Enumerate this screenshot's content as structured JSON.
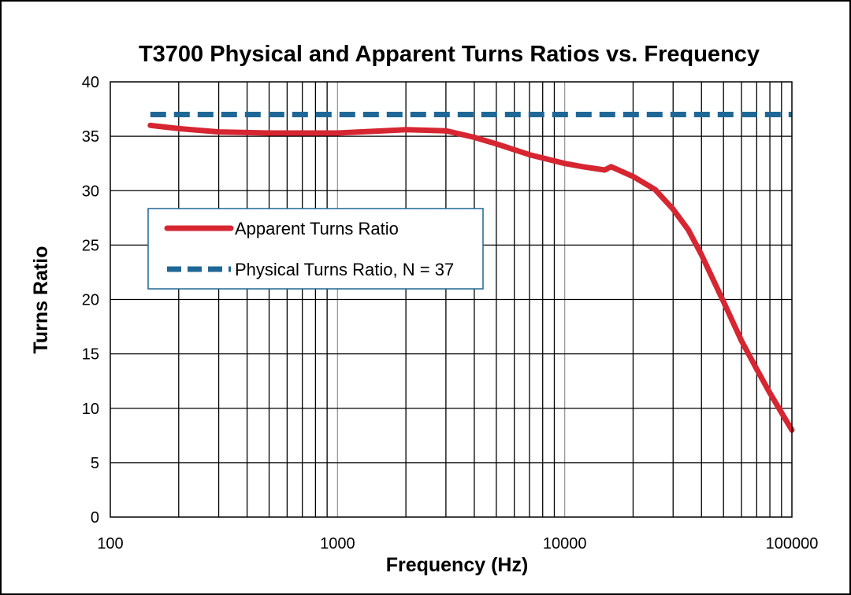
{
  "chart_data": {
    "type": "line",
    "title": "T3700 Physical and Apparent Turns Ratios vs. Frequency",
    "xlabel": "Frequency (Hz)",
    "ylabel": "Turns Ratio",
    "xscale": "log",
    "xlim": [
      100,
      100000
    ],
    "ylim": [
      0,
      40
    ],
    "xticks": [
      "100",
      "1000",
      "10000",
      "100000"
    ],
    "yticks": [
      "0",
      "5",
      "10",
      "15",
      "20",
      "25",
      "30",
      "35",
      "40"
    ],
    "grid": true,
    "legend_position": "left",
    "series": [
      {
        "name": "Apparent Turns Ratio",
        "color": "#d62631",
        "style": "solid",
        "x": [
          150,
          200,
          300,
          500,
          1000,
          2000,
          3000,
          4000,
          5000,
          7000,
          10000,
          12000,
          15000,
          16000,
          20000,
          25000,
          30000,
          35000,
          40000,
          50000,
          60000,
          70000,
          80000,
          90000,
          100000
        ],
        "y": [
          36.0,
          35.7,
          35.4,
          35.3,
          35.3,
          35.6,
          35.5,
          34.9,
          34.3,
          33.3,
          32.5,
          32.2,
          31.9,
          32.2,
          31.3,
          30.1,
          28.3,
          26.4,
          24.1,
          19.8,
          16.2,
          13.6,
          11.4,
          9.6,
          8.0
        ]
      },
      {
        "name": "Physical Turns Ratio, N = 37",
        "color": "#1f6796",
        "style": "dashed",
        "x": [
          150,
          100000
        ],
        "y": [
          37,
          37
        ]
      }
    ]
  }
}
